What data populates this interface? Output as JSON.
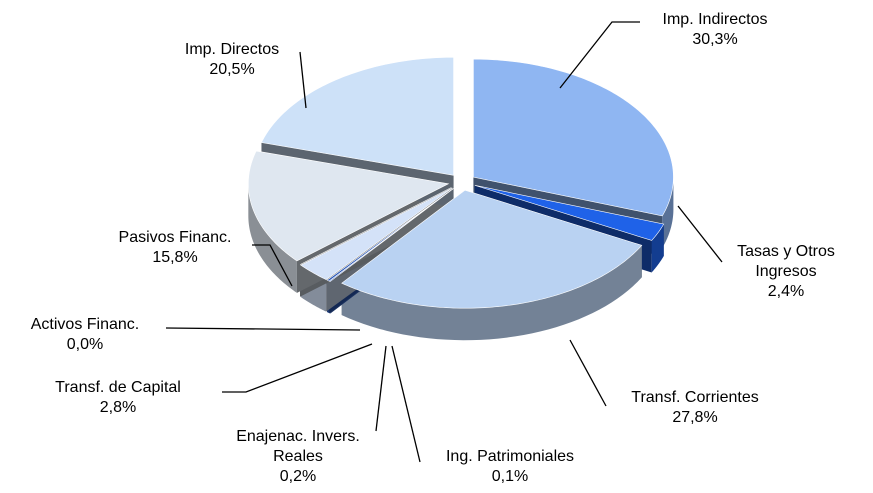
{
  "chart_data": {
    "type": "pie",
    "categories": [
      "Imp. Indirectos",
      "Tasas y Otros Ingresos",
      "Transf. Corrientes",
      "Ing. Patrimoniales",
      "Enajenac. Invers. Reales",
      "Transf. de Capital",
      "Activos Financ.",
      "Pasivos Financ.",
      "Imp. Directos"
    ],
    "values": [
      30.3,
      2.4,
      27.8,
      0.1,
      0.2,
      2.8,
      0.0,
      15.8,
      20.5
    ],
    "value_labels": [
      "30,3%",
      "2,4%",
      "27,8%",
      "0,1%",
      "0,2%",
      "2,8%",
      "0,0%",
      "15,8%",
      "20,5%"
    ],
    "colors": [
      "#8fb6f2",
      "#1f62e8",
      "#b9d2f2",
      "#3a6cd0",
      "#2a58b8",
      "#d4e2f8",
      "#c4ccd6",
      "#dfe7f0",
      "#cde1f8"
    ]
  }
}
